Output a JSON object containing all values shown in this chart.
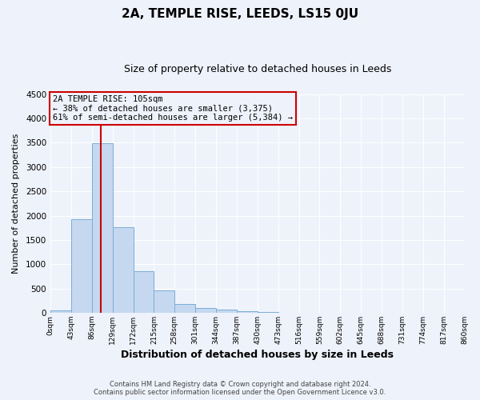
{
  "title": "2A, TEMPLE RISE, LEEDS, LS15 0JU",
  "subtitle": "Size of property relative to detached houses in Leeds",
  "xlabel": "Distribution of detached houses by size in Leeds",
  "ylabel": "Number of detached properties",
  "bar_color": "#c5d8f0",
  "bar_edgecolor": "#7aaed6",
  "background_color": "#eef2fb",
  "grid_color": "#ffffff",
  "bin_edges": [
    0,
    43,
    86,
    129,
    172,
    215,
    258,
    301,
    344,
    387,
    430,
    473,
    516,
    559,
    602,
    645,
    688,
    731,
    774,
    817,
    860
  ],
  "bar_heights": [
    40,
    1920,
    3490,
    1760,
    860,
    460,
    175,
    100,
    58,
    28,
    12,
    5,
    3,
    2,
    1,
    1,
    0,
    0,
    0,
    0
  ],
  "tick_labels": [
    "0sqm",
    "43sqm",
    "86sqm",
    "129sqm",
    "172sqm",
    "215sqm",
    "258sqm",
    "301sqm",
    "344sqm",
    "387sqm",
    "430sqm",
    "473sqm",
    "516sqm",
    "559sqm",
    "602sqm",
    "645sqm",
    "688sqm",
    "731sqm",
    "774sqm",
    "817sqm",
    "860sqm"
  ],
  "ylim": [
    0,
    4500
  ],
  "yticks": [
    0,
    500,
    1000,
    1500,
    2000,
    2500,
    3000,
    3500,
    4000,
    4500
  ],
  "property_size": 105,
  "vline_color": "#cc0000",
  "annotation_box_edgecolor": "#cc0000",
  "annotation_line1": "2A TEMPLE RISE: 105sqm",
  "annotation_line2": "← 38% of detached houses are smaller (3,375)",
  "annotation_line3": "61% of semi-detached houses are larger (5,384) →",
  "footer_line1": "Contains HM Land Registry data © Crown copyright and database right 2024.",
  "footer_line2": "Contains public sector information licensed under the Open Government Licence v3.0."
}
